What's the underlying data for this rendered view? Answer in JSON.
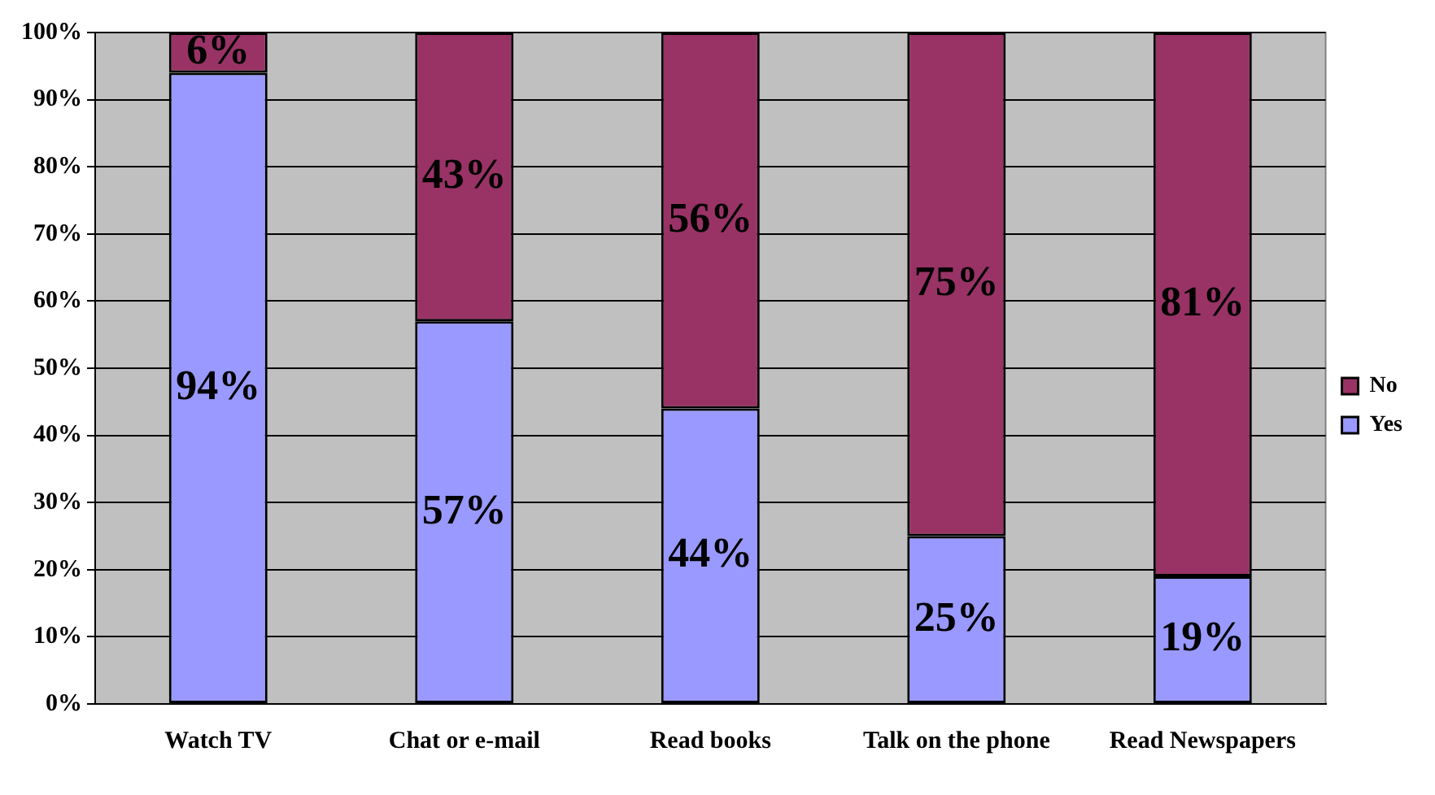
{
  "chart_data": {
    "type": "bar",
    "stacked": true,
    "categories": [
      "Watch TV",
      "Chat or e-mail",
      "Read books",
      "Talk on the phone",
      "Read Newspapers"
    ],
    "series": [
      {
        "name": "Yes",
        "color": "#9999ff",
        "values": [
          94,
          57,
          44,
          25,
          19
        ],
        "value_labels": [
          "94%",
          "57%",
          "44%",
          "25%",
          "19%"
        ]
      },
      {
        "name": "No",
        "color": "#993366",
        "values": [
          6,
          43,
          56,
          75,
          81
        ],
        "value_labels": [
          "6%",
          "43%",
          "56%",
          "75%",
          "81%"
        ]
      }
    ],
    "ylim": [
      0,
      100
    ],
    "yticks": [
      {
        "value": 0,
        "label": "0%"
      },
      {
        "value": 10,
        "label": "10%"
      },
      {
        "value": 20,
        "label": "20%"
      },
      {
        "value": 30,
        "label": "30%"
      },
      {
        "value": 40,
        "label": "40%"
      },
      {
        "value": 50,
        "label": "50%"
      },
      {
        "value": 60,
        "label": "60%"
      },
      {
        "value": 70,
        "label": "70%"
      },
      {
        "value": 80,
        "label": "80%"
      },
      {
        "value": 90,
        "label": "90%"
      },
      {
        "value": 100,
        "label": "100%"
      }
    ],
    "grid": "y",
    "legend": "right"
  }
}
